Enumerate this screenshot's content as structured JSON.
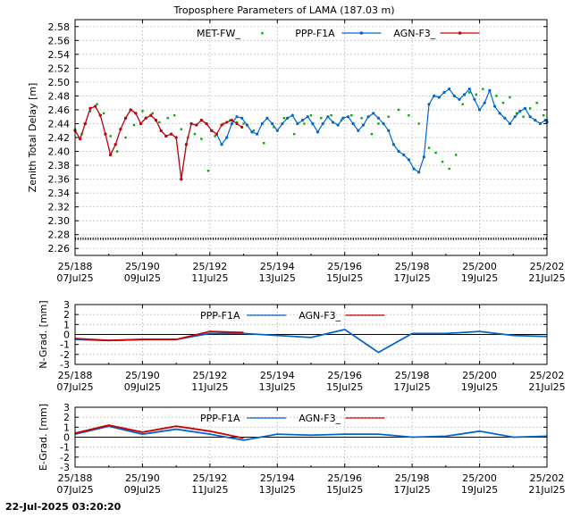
{
  "figure": {
    "title": "Troposphere Parameters of LAMA (187.03 m)",
    "footer_timestamp": "22-Jul-2025 03:20:20"
  },
  "chart_data": [
    {
      "type": "line",
      "id": "ztd",
      "ylabel": "Zenith Total Delay [m]",
      "ylim": [
        2.25,
        2.59
      ],
      "yticks": [
        "2.26",
        "2.28",
        "2.30",
        "2.32",
        "2.34",
        "2.36",
        "2.38",
        "2.40",
        "2.42",
        "2.44",
        "2.46",
        "2.48",
        "2.50",
        "2.52",
        "2.54",
        "2.56",
        "2.58"
      ],
      "xlim": [
        188,
        202
      ],
      "xticks": [
        {
          "top": "25/188",
          "bottom": "07Jul25"
        },
        {
          "top": "25/190",
          "bottom": "09Jul25"
        },
        {
          "top": "25/192",
          "bottom": "11Jul25"
        },
        {
          "top": "25/194",
          "bottom": "13Jul25"
        },
        {
          "top": "25/196",
          "bottom": "15Jul25"
        },
        {
          "top": "25/198",
          "bottom": "17Jul25"
        },
        {
          "top": "25/200",
          "bottom": "19Jul25"
        },
        {
          "top": "25/202",
          "bottom": "21Jul25"
        }
      ],
      "grid": true,
      "legend_position": "top",
      "series": [
        {
          "name": "MET-FW_",
          "color": "#00aa00",
          "style": "points",
          "x": [
            188.0,
            188.2,
            188.45,
            188.65,
            188.85,
            189.05,
            189.25,
            189.5,
            189.75,
            190.0,
            190.3,
            190.5,
            190.75,
            190.95,
            191.15,
            191.35,
            191.55,
            191.75,
            191.95,
            192.15,
            192.4,
            192.6,
            192.8,
            193.0,
            193.3,
            193.6,
            193.9,
            194.2,
            194.5,
            194.8,
            195.0,
            195.3,
            195.6,
            195.9,
            196.2,
            196.5,
            196.8,
            197.0,
            197.3,
            197.6,
            197.9,
            198.2,
            198.5,
            198.7,
            198.9,
            199.1,
            199.3,
            199.5,
            199.7,
            199.9,
            200.1,
            200.3,
            200.5,
            200.7,
            200.9,
            201.1,
            201.3,
            201.5,
            201.7,
            201.9,
            202.0
          ],
          "y": [
            2.432,
            2.425,
            2.458,
            2.468,
            2.455,
            2.422,
            2.4,
            2.42,
            2.438,
            2.458,
            2.455,
            2.442,
            2.448,
            2.452,
            2.432,
            2.42,
            2.425,
            2.418,
            2.372,
            2.422,
            2.44,
            2.445,
            2.442,
            2.44,
            2.43,
            2.412,
            2.435,
            2.448,
            2.425,
            2.44,
            2.452,
            2.448,
            2.452,
            2.445,
            2.452,
            2.448,
            2.425,
            2.44,
            2.45,
            2.46,
            2.452,
            2.44,
            2.405,
            2.398,
            2.385,
            2.375,
            2.395,
            2.468,
            2.485,
            2.482,
            2.49,
            2.488,
            2.48,
            2.47,
            2.478,
            2.455,
            2.45,
            2.462,
            2.47,
            2.452,
            2.445
          ]
        },
        {
          "name": "PPP-F1A",
          "color": "#0066cc",
          "style": "linespoints",
          "x": [
            188.0,
            188.15,
            188.3,
            188.45,
            188.6,
            188.75,
            188.9,
            189.05,
            189.2,
            189.35,
            189.5,
            189.65,
            189.8,
            189.95,
            190.1,
            190.25,
            190.4,
            190.55,
            190.7,
            190.85,
            191.0,
            191.15,
            191.3,
            191.45,
            191.6,
            191.75,
            191.9,
            192.05,
            192.2,
            192.35,
            192.5,
            192.65,
            192.8,
            192.95,
            193.1,
            193.25,
            193.4,
            193.55,
            193.7,
            193.85,
            194.0,
            194.15,
            194.3,
            194.45,
            194.6,
            194.75,
            194.9,
            195.05,
            195.2,
            195.35,
            195.5,
            195.65,
            195.8,
            195.95,
            196.1,
            196.25,
            196.4,
            196.55,
            196.7,
            196.85,
            197.0,
            197.15,
            197.3,
            197.45,
            197.6,
            197.75,
            197.9,
            198.05,
            198.2,
            198.35,
            198.5,
            198.65,
            198.8,
            198.95,
            199.1,
            199.25,
            199.4,
            199.55,
            199.7,
            199.85,
            200.0,
            200.15,
            200.3,
            200.45,
            200.6,
            200.75,
            200.9,
            201.05,
            201.2,
            201.35,
            201.5,
            201.65,
            201.8,
            201.95,
            202.0
          ],
          "y": [
            2.43,
            2.418,
            2.44,
            2.462,
            2.465,
            2.452,
            2.425,
            2.395,
            2.41,
            2.432,
            2.448,
            2.46,
            2.455,
            2.44,
            2.448,
            2.452,
            2.445,
            2.43,
            2.422,
            2.425,
            2.42,
            2.36,
            2.41,
            2.44,
            2.438,
            2.445,
            2.44,
            2.43,
            2.425,
            2.41,
            2.42,
            2.44,
            2.45,
            2.448,
            2.438,
            2.428,
            2.425,
            2.44,
            2.448,
            2.44,
            2.43,
            2.44,
            2.448,
            2.452,
            2.44,
            2.445,
            2.45,
            2.44,
            2.428,
            2.44,
            2.45,
            2.442,
            2.438,
            2.448,
            2.45,
            2.44,
            2.43,
            2.438,
            2.45,
            2.455,
            2.448,
            2.44,
            2.43,
            2.41,
            2.4,
            2.395,
            2.388,
            2.375,
            2.37,
            2.392,
            2.468,
            2.48,
            2.478,
            2.485,
            2.49,
            2.48,
            2.475,
            2.482,
            2.49,
            2.475,
            2.46,
            2.47,
            2.488,
            2.465,
            2.455,
            2.448,
            2.44,
            2.45,
            2.458,
            2.462,
            2.45,
            2.445,
            2.44,
            2.445,
            2.442
          ]
        },
        {
          "name": "AGN-F3_",
          "color": "#cc0000",
          "style": "linespoints",
          "x": [
            188.0,
            188.15,
            188.3,
            188.45,
            188.6,
            188.75,
            188.9,
            189.05,
            189.2,
            189.35,
            189.5,
            189.65,
            189.8,
            189.95,
            190.1,
            190.25,
            190.4,
            190.55,
            190.7,
            190.85,
            191.0,
            191.15,
            191.3,
            191.45,
            191.6,
            191.75,
            191.9,
            192.05,
            192.2,
            192.35,
            192.5,
            192.65,
            192.8,
            192.95
          ],
          "y": [
            2.43,
            2.418,
            2.44,
            2.462,
            2.465,
            2.452,
            2.425,
            2.395,
            2.41,
            2.432,
            2.448,
            2.46,
            2.455,
            2.44,
            2.448,
            2.452,
            2.445,
            2.43,
            2.422,
            2.425,
            2.42,
            2.36,
            2.41,
            2.44,
            2.438,
            2.445,
            2.44,
            2.43,
            2.425,
            2.438,
            2.442,
            2.445,
            2.44,
            2.435
          ]
        }
      ],
      "reference_line": {
        "y": 2.274,
        "color": "#000000"
      }
    },
    {
      "type": "line",
      "id": "ngrad",
      "ylabel": "N-Grad. [mm]",
      "ylim": [
        -3,
        3
      ],
      "yticks": [
        "-3",
        "-2",
        "-1",
        "0",
        "1",
        "2",
        "3"
      ],
      "xlim": [
        188,
        202
      ],
      "grid": true,
      "legend_position": "top",
      "series": [
        {
          "name": "PPP-F1A",
          "color": "#0066cc",
          "x": [
            188,
            189,
            190,
            191,
            192,
            193,
            194,
            195,
            196,
            197,
            198,
            199,
            200,
            201,
            202
          ],
          "y": [
            -0.5,
            -0.6,
            -0.5,
            -0.5,
            0.1,
            0.1,
            -0.1,
            -0.3,
            0.5,
            -1.8,
            0.1,
            0.1,
            0.3,
            -0.1,
            -0.2
          ]
        },
        {
          "name": "AGN-F3_",
          "color": "#cc0000",
          "x": [
            188,
            189,
            190,
            191,
            192,
            193
          ],
          "y": [
            -0.4,
            -0.6,
            -0.5,
            -0.5,
            0.3,
            0.2
          ]
        }
      ]
    },
    {
      "type": "line",
      "id": "egrad",
      "ylabel": "E-Grad. [mm]",
      "ylim": [
        -3,
        3
      ],
      "yticks": [
        "-3",
        "-2",
        "-1",
        "0",
        "1",
        "2",
        "3"
      ],
      "xlim": [
        188,
        202
      ],
      "grid": true,
      "legend_position": "top",
      "series": [
        {
          "name": "PPP-F1A",
          "color": "#0066cc",
          "x": [
            188,
            189,
            190,
            191,
            192,
            193,
            194,
            195,
            196,
            197,
            198,
            199,
            200,
            201,
            202
          ],
          "y": [
            0.3,
            1.1,
            0.3,
            0.8,
            0.3,
            -0.3,
            0.3,
            0.2,
            0.3,
            0.3,
            0.0,
            0.1,
            0.6,
            0.0,
            0.1
          ]
        },
        {
          "name": "AGN-F3_",
          "color": "#cc0000",
          "x": [
            188,
            189,
            190,
            191,
            192,
            193
          ],
          "y": [
            0.4,
            1.2,
            0.5,
            1.1,
            0.6,
            -0.1
          ]
        }
      ]
    }
  ]
}
